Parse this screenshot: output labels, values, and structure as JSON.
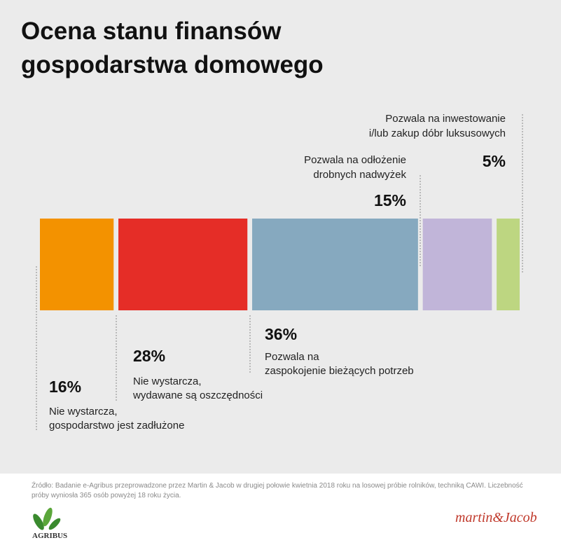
{
  "chart_data": {
    "type": "stacked-bar",
    "title": [
      "Ocena stanu finansów",
      "gospodarstwa domowego"
    ],
    "categories": [
      [
        "Nie wystarcza,",
        "gospodarstwo jest zadłużone"
      ],
      [
        "Nie wystarcza,",
        "wydawane są oszczędności"
      ],
      [
        "Pozwala na",
        "zaspokojenie bieżących potrzeb"
      ],
      [
        "Pozwala na odłożenie",
        "drobnych nadwyżek"
      ],
      [
        "Pozwala na inwestowanie",
        "i/lub zakup dóbr luksusowych"
      ]
    ],
    "values": [
      16,
      28,
      36,
      15,
      5
    ],
    "value_labels": [
      "16%",
      "28%",
      "36%",
      "15%",
      "5%"
    ],
    "colors": [
      "#f39200",
      "#e52d27",
      "#86a9bf",
      "#c1b5d9",
      "#bdd681"
    ],
    "source": "Źródło: Badanie e-Agribus przeprowadzone przez Martin & Jacob w drugiej połowie kwietnia 2018 roku na losowej próbie rolników, techniką CAWI. Liczebność próby wyniosła 365 osób powyżej 18 roku życia.",
    "logos": [
      "AGRIBUS",
      "martin&Jacob"
    ]
  }
}
